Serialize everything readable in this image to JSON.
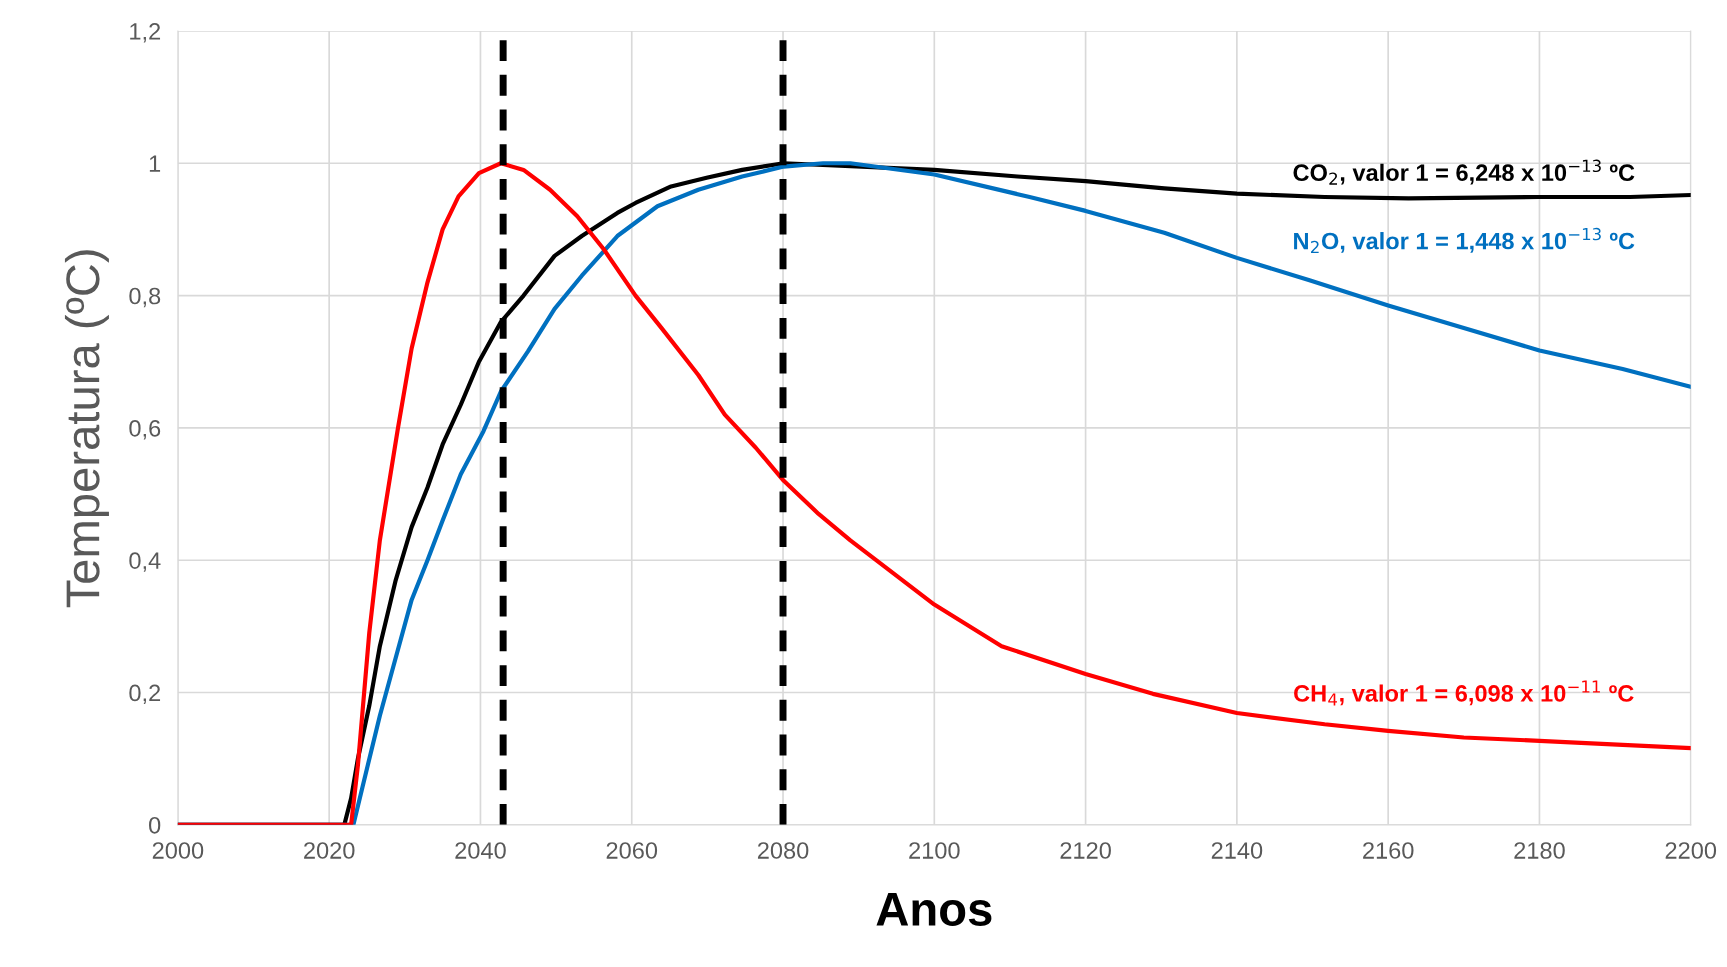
{
  "chart_data": {
    "type": "line",
    "xlabel": "Anos",
    "ylabel": "Temperatura (ºC)",
    "xlim": [
      2000,
      2200
    ],
    "xticks": [
      2000,
      2020,
      2040,
      2060,
      2080,
      2100,
      2120,
      2140,
      2160,
      2180,
      2200
    ],
    "ylim": [
      0,
      1.2
    ],
    "yticks": [
      0,
      {
        "value": 0.2,
        "label": "0,2"
      },
      {
        "value": 0.4,
        "label": "0,4"
      },
      {
        "value": 0.6,
        "label": "0,6"
      },
      {
        "value": 0.8,
        "label": "0,8"
      },
      1,
      {
        "value": 1.2,
        "label": "1,2"
      }
    ],
    "grid": true,
    "legend": false,
    "marker": "none",
    "line_style": "solid",
    "series": [
      {
        "name": "CO$_{2}$, valor 1 = 6,248 x 10$^{−13}$ ºC",
        "color": "#000000",
        "x": [
          2000,
          2022.0,
          2022.9,
          2023.8,
          2025.3,
          2026.7,
          2028.8,
          2030.9,
          2033.0,
          2035.0,
          2037.4,
          2039.8,
          2042.7,
          2045.7,
          2049.8,
          2053.4,
          2058.1,
          2060.5,
          2065.2,
          2069.9,
          2074.6,
          2080.1,
          2100,
          2111,
          2120,
          2130.4,
          2140,
          2151.6,
          2162.7,
          2180,
          2192,
          2200
        ],
        "values": [
          0,
          0,
          0.04,
          0.1,
          0.18,
          0.27,
          0.37,
          0.45,
          0.51,
          0.575,
          0.635,
          0.7,
          0.76,
          0.8,
          0.86,
          0.89,
          0.925,
          0.94,
          0.965,
          0.978,
          0.99,
          1.0,
          0.99,
          0.98,
          0.973,
          0.962,
          0.954,
          0.949,
          0.947,
          0.949,
          0.949,
          0.952
        ]
      },
      {
        "name": "N$_{2}$O, valor 1 = 1,448 x 10$^{−13}$ ºC",
        "color": "#0070c0",
        "x": [
          2000,
          2023.2,
          2024.4,
          2026.7,
          2028.5,
          2030.9,
          2033.0,
          2035.0,
          2037.4,
          2040.4,
          2042.7,
          2046.3,
          2049.8,
          2053.4,
          2058.1,
          2063.4,
          2068.8,
          2074.6,
          2080.1,
          2085.3,
          2088.9,
          2100,
          2112.6,
          2120,
          2130.4,
          2140,
          2149.6,
          2160,
          2170,
          2180,
          2191,
          2200
        ],
        "values": [
          0,
          0,
          0.057,
          0.165,
          0.24,
          0.34,
          0.4,
          0.46,
          0.53,
          0.595,
          0.655,
          0.716,
          0.78,
          0.83,
          0.89,
          0.935,
          0.96,
          0.98,
          0.995,
          1.0,
          1.0,
          0.983,
          0.949,
          0.928,
          0.895,
          0.857,
          0.823,
          0.785,
          0.751,
          0.717,
          0.689,
          0.662
        ]
      },
      {
        "name": "CH$_{4}$, valor 1 = 6,098 x 10$^{−11}$ ºC",
        "color": "#ff0000",
        "x": [
          2000,
          2022.9,
          2023.8,
          2025.3,
          2026.7,
          2029.1,
          2030.9,
          2033.0,
          2035.0,
          2037.1,
          2039.8,
          2042.7,
          2045.7,
          2049.2,
          2052.8,
          2056.3,
          2060.5,
          2064.0,
          2068.8,
          2072.3,
          2076.4,
          2080.1,
          2084.7,
          2088.9,
          2100,
          2108.9,
          2120,
          2128.9,
          2140,
          2151.6,
          2160,
          2170,
          2180,
          2191,
          2200
        ],
        "values": [
          0,
          0,
          0.09,
          0.29,
          0.43,
          0.6,
          0.72,
          0.82,
          0.9,
          0.95,
          0.985,
          1.0,
          0.99,
          0.96,
          0.92,
          0.87,
          0.8,
          0.75,
          0.68,
          0.62,
          0.57,
          0.52,
          0.47,
          0.43,
          0.333,
          0.27,
          0.228,
          0.198,
          0.169,
          0.152,
          0.142,
          0.132,
          0.127,
          0.121,
          0.116
        ]
      }
    ],
    "ref_lines": [
      {
        "axis": "x",
        "value": 2043,
        "color": "#000000",
        "line_style": "dashed"
      },
      {
        "axis": "x",
        "value": 2080,
        "color": "#000000",
        "line_style": "dashed"
      }
    ]
  }
}
